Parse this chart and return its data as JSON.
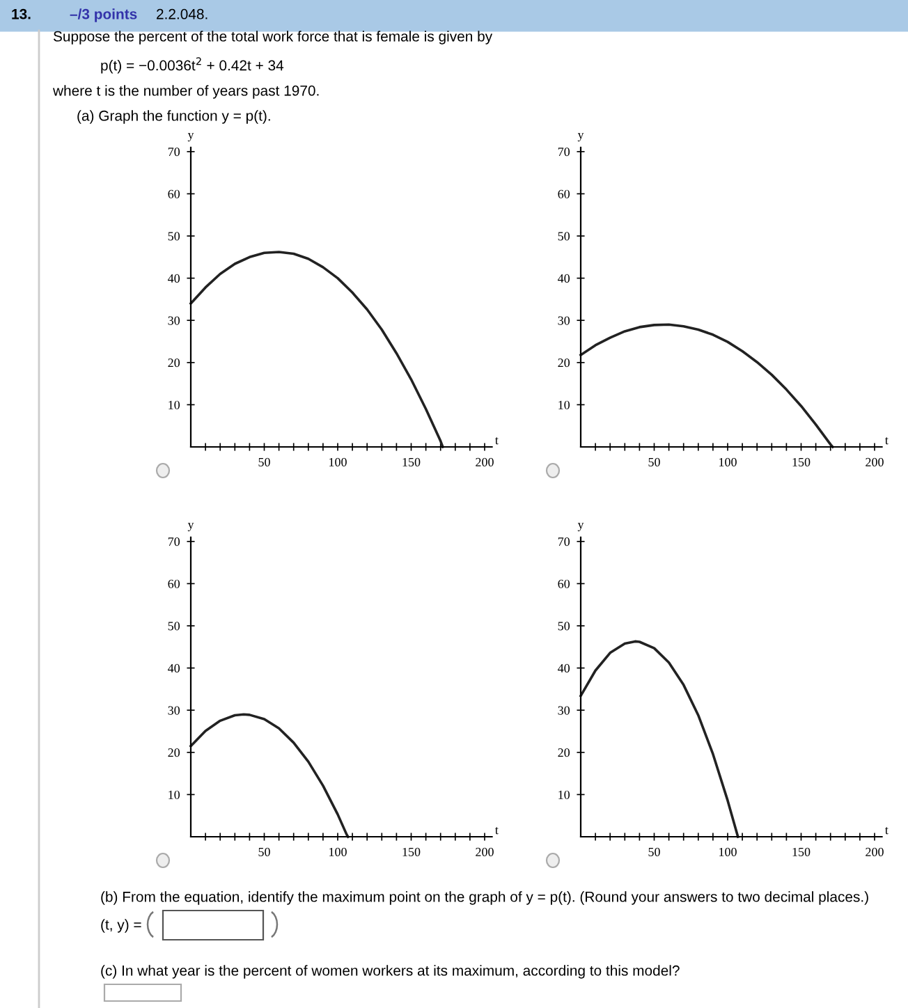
{
  "chart_data": [
    {
      "type": "other",
      "annotations": [
        "13.",
        "–/3 points",
        "2.2.048.",
        "Suppose the percent of the total work force that is female is given by",
        "p(t) = −0.0036t$^{2}$ + 0.42t + 34",
        "where t is the number of years past 1970.",
        "(a) Graph the function y = p(t)."
      ]
    },
    {
      "type": "line",
      "xlabel": "t",
      "ylabel": "y",
      "xlim": [
        0,
        205
      ],
      "ylim": [
        0,
        71
      ],
      "xticks": [
        {
          "value": 10,
          "label": null
        },
        {
          "value": 20,
          "label": null
        },
        {
          "value": 30,
          "label": null
        },
        {
          "value": 40,
          "label": null
        },
        50,
        {
          "value": 60,
          "label": null
        },
        {
          "value": 70,
          "label": null
        },
        {
          "value": 80,
          "label": null
        },
        {
          "value": 90,
          "label": null
        },
        100,
        {
          "value": 110,
          "label": null
        },
        {
          "value": 120,
          "label": null
        },
        {
          "value": 130,
          "label": null
        },
        {
          "value": 140,
          "label": null
        },
        150,
        {
          "value": 160,
          "label": null
        },
        {
          "value": 170,
          "label": null
        },
        {
          "value": 180,
          "label": null
        },
        {
          "value": 190,
          "label": null
        },
        200
      ],
      "yticks": [
        10,
        20,
        30,
        40,
        50,
        60,
        70
      ],
      "series": [
        {
          "color": "#222222",
          "x": [
            0,
            10,
            20,
            30,
            40,
            50,
            60,
            70,
            80,
            90,
            100,
            110,
            120,
            130,
            140,
            150,
            160,
            170,
            171.5
          ],
          "values": [
            34,
            37.8,
            41.0,
            43.4,
            45.0,
            46.0,
            46.2,
            45.8,
            44.6,
            42.6,
            40.0,
            36.6,
            32.6,
            27.8,
            22.2,
            16.0,
            9.0,
            1.4,
            0
          ]
        }
      ]
    },
    {
      "type": "line",
      "xlabel": "t",
      "ylabel": "y",
      "xlim": [
        0,
        205
      ],
      "ylim": [
        0,
        71
      ],
      "xticks": [
        {
          "value": 10,
          "label": null
        },
        {
          "value": 20,
          "label": null
        },
        {
          "value": 30,
          "label": null
        },
        {
          "value": 40,
          "label": null
        },
        50,
        {
          "value": 60,
          "label": null
        },
        {
          "value": 70,
          "label": null
        },
        {
          "value": 80,
          "label": null
        },
        {
          "value": 90,
          "label": null
        },
        100,
        {
          "value": 110,
          "label": null
        },
        {
          "value": 120,
          "label": null
        },
        {
          "value": 130,
          "label": null
        },
        {
          "value": 140,
          "label": null
        },
        150,
        {
          "value": 160,
          "label": null
        },
        {
          "value": 170,
          "label": null
        },
        {
          "value": 180,
          "label": null
        },
        {
          "value": 190,
          "label": null
        },
        200
      ],
      "yticks": [
        10,
        20,
        30,
        40,
        50,
        60,
        70
      ],
      "series": [
        {
          "color": "#222222",
          "x": [
            0,
            10,
            20,
            30,
            40,
            50,
            60,
            70,
            80,
            90,
            100,
            110,
            120,
            130,
            140,
            150,
            160,
            170,
            171.5
          ],
          "values": [
            21.8,
            24.1,
            25.9,
            27.4,
            28.4,
            28.9,
            29.0,
            28.6,
            27.8,
            26.6,
            24.9,
            22.7,
            20.1,
            17.1,
            13.6,
            9.7,
            5.3,
            0.6,
            0
          ]
        }
      ]
    },
    {
      "type": "line",
      "xlabel": "t",
      "ylabel": "y",
      "xlim": [
        0,
        205
      ],
      "ylim": [
        0,
        71
      ],
      "xticks": [
        {
          "value": 10,
          "label": null
        },
        {
          "value": 20,
          "label": null
        },
        {
          "value": 30,
          "label": null
        },
        {
          "value": 40,
          "label": null
        },
        50,
        {
          "value": 60,
          "label": null
        },
        {
          "value": 70,
          "label": null
        },
        {
          "value": 80,
          "label": null
        },
        {
          "value": 90,
          "label": null
        },
        100,
        {
          "value": 110,
          "label": null
        },
        {
          "value": 120,
          "label": null
        },
        {
          "value": 130,
          "label": null
        },
        {
          "value": 140,
          "label": null
        },
        150,
        {
          "value": 160,
          "label": null
        },
        {
          "value": 170,
          "label": null
        },
        {
          "value": 180,
          "label": null
        },
        {
          "value": 190,
          "label": null
        },
        200
      ],
      "yticks": [
        10,
        20,
        30,
        40,
        50,
        60,
        70
      ],
      "series": [
        {
          "color": "#222222",
          "x": [
            0,
            10,
            20,
            30,
            36,
            40,
            50,
            60,
            70,
            80,
            90,
            100,
            106,
            107
          ],
          "values": [
            21.5,
            25.1,
            27.5,
            28.8,
            29.0,
            28.9,
            27.9,
            25.7,
            22.3,
            17.8,
            12.1,
            5.3,
            0.6,
            0
          ]
        }
      ]
    },
    {
      "type": "line",
      "xlabel": "t",
      "ylabel": "y",
      "xlim": [
        0,
        205
      ],
      "ylim": [
        0,
        71
      ],
      "xticks": [
        {
          "value": 10,
          "label": null
        },
        {
          "value": 20,
          "label": null
        },
        {
          "value": 30,
          "label": null
        },
        {
          "value": 40,
          "label": null
        },
        50,
        {
          "value": 60,
          "label": null
        },
        {
          "value": 70,
          "label": null
        },
        {
          "value": 80,
          "label": null
        },
        {
          "value": 90,
          "label": null
        },
        100,
        {
          "value": 110,
          "label": null
        },
        {
          "value": 120,
          "label": null
        },
        {
          "value": 130,
          "label": null
        },
        {
          "value": 140,
          "label": null
        },
        150,
        {
          "value": 160,
          "label": null
        },
        {
          "value": 170,
          "label": null
        },
        {
          "value": 180,
          "label": null
        },
        {
          "value": 190,
          "label": null
        },
        200
      ],
      "yticks": [
        10,
        20,
        30,
        40,
        50,
        60,
        70
      ],
      "series": [
        {
          "color": "#222222",
          "x": [
            0,
            10,
            20,
            30,
            37,
            40,
            50,
            60,
            70,
            80,
            90,
            100,
            107
          ],
          "values": [
            33.4,
            39.4,
            43.6,
            45.8,
            46.3,
            46.2,
            44.7,
            41.3,
            36.0,
            28.8,
            19.6,
            8.6,
            0
          ]
        }
      ]
    },
    {
      "type": "other",
      "annotations": [
        "(b) From the equation, identify the maximum point on the graph of y = p(t). (Round your answers to two decimal places.)",
        "(t, y) =",
        "(c) In what year is the percent of women workers at its maximum, according to this model?"
      ]
    }
  ]
}
